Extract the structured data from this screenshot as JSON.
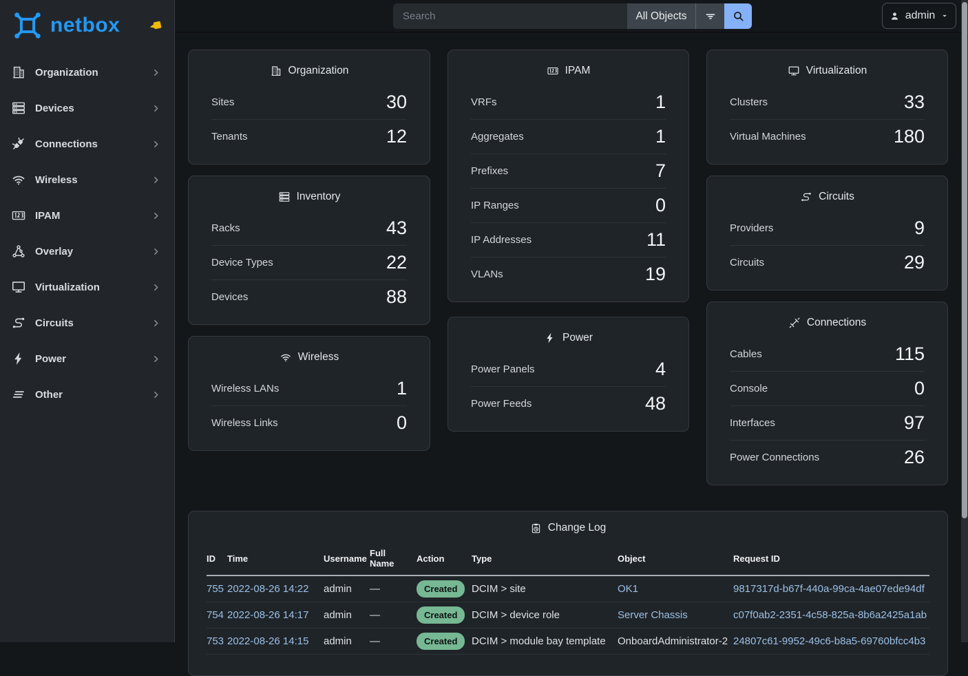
{
  "colors": {
    "accent": "#2499f2",
    "link": "#9cc0e6",
    "badge_green": "#76b893",
    "search_button_blue": "#85b1f9",
    "pin_yellow": "#edb90c"
  },
  "sidebar": {
    "logo_text": "netbox",
    "items": [
      {
        "label": "Organization",
        "icon": "building"
      },
      {
        "label": "Devices",
        "icon": "server"
      },
      {
        "label": "Connections",
        "icon": "plug"
      },
      {
        "label": "Wireless",
        "icon": "wifi"
      },
      {
        "label": "IPAM",
        "icon": "counter"
      },
      {
        "label": "Overlay",
        "icon": "graph"
      },
      {
        "label": "Virtualization",
        "icon": "monitor"
      },
      {
        "label": "Circuits",
        "icon": "transit"
      },
      {
        "label": "Power",
        "icon": "bolt"
      },
      {
        "label": "Other",
        "icon": "lines"
      }
    ]
  },
  "topbar": {
    "search_placeholder": "Search",
    "scope_label": "All Objects",
    "user_label": "admin"
  },
  "stat_cards": [
    {
      "key": "organization",
      "title": "Organization",
      "icon": "building",
      "column": 0,
      "rows": [
        {
          "label": "Sites",
          "value": "30"
        },
        {
          "label": "Tenants",
          "value": "12"
        }
      ]
    },
    {
      "key": "inventory",
      "title": "Inventory",
      "icon": "server",
      "column": 0,
      "rows": [
        {
          "label": "Racks",
          "value": "43"
        },
        {
          "label": "Device Types",
          "value": "22"
        },
        {
          "label": "Devices",
          "value": "88"
        }
      ]
    },
    {
      "key": "wireless",
      "title": "Wireless",
      "icon": "wifi",
      "column": 0,
      "rows": [
        {
          "label": "Wireless LANs",
          "value": "1"
        },
        {
          "label": "Wireless Links",
          "value": "0"
        }
      ]
    },
    {
      "key": "ipam",
      "title": "IPAM",
      "icon": "counter",
      "column": 1,
      "rows": [
        {
          "label": "VRFs",
          "value": "1"
        },
        {
          "label": "Aggregates",
          "value": "1"
        },
        {
          "label": "Prefixes",
          "value": "7"
        },
        {
          "label": "IP Ranges",
          "value": "0"
        },
        {
          "label": "IP Addresses",
          "value": "11"
        },
        {
          "label": "VLANs",
          "value": "19"
        }
      ]
    },
    {
      "key": "power",
      "title": "Power",
      "icon": "bolt",
      "column": 1,
      "rows": [
        {
          "label": "Power Panels",
          "value": "4"
        },
        {
          "label": "Power Feeds",
          "value": "48"
        }
      ]
    },
    {
      "key": "virtualization",
      "title": "Virtualization",
      "icon": "monitor",
      "column": 2,
      "rows": [
        {
          "label": "Clusters",
          "value": "33"
        },
        {
          "label": "Virtual Machines",
          "value": "180"
        }
      ]
    },
    {
      "key": "circuits",
      "title": "Circuits",
      "icon": "transit",
      "column": 2,
      "rows": [
        {
          "label": "Providers",
          "value": "9"
        },
        {
          "label": "Circuits",
          "value": "29"
        }
      ]
    },
    {
      "key": "connections",
      "title": "Connections",
      "icon": "cable",
      "column": 2,
      "rows": [
        {
          "label": "Cables",
          "value": "115"
        },
        {
          "label": "Console",
          "value": "0"
        },
        {
          "label": "Interfaces",
          "value": "97"
        },
        {
          "label": "Power Connections",
          "value": "26"
        }
      ]
    }
  ],
  "changelog": {
    "title": "Change Log",
    "columns": [
      "ID",
      "Time",
      "Username",
      "Full Name",
      "Action",
      "Type",
      "Object",
      "Request ID"
    ],
    "rows": [
      {
        "id": "755",
        "time": "2022-08-26 14:22",
        "username": "admin",
        "full_name": "—",
        "action": "Created",
        "type": "DCIM > site",
        "object": "OK1",
        "object_link": true,
        "request_id": "9817317d-b67f-440a-99ca-4ae07ede94df"
      },
      {
        "id": "754",
        "time": "2022-08-26 14:17",
        "username": "admin",
        "full_name": "—",
        "action": "Created",
        "type": "DCIM > device role",
        "object": "Server Chassis",
        "object_link": true,
        "request_id": "c07f0ab2-2351-4c58-825a-8b6a2425a1ab"
      },
      {
        "id": "753",
        "time": "2022-08-26 14:15",
        "username": "admin",
        "full_name": "—",
        "action": "Created",
        "type": "DCIM > module bay template",
        "object": "OnboardAdministrator-2",
        "object_link": false,
        "request_id": "24807c61-9952-49c6-b8a5-69760bfcc4b3"
      }
    ]
  }
}
